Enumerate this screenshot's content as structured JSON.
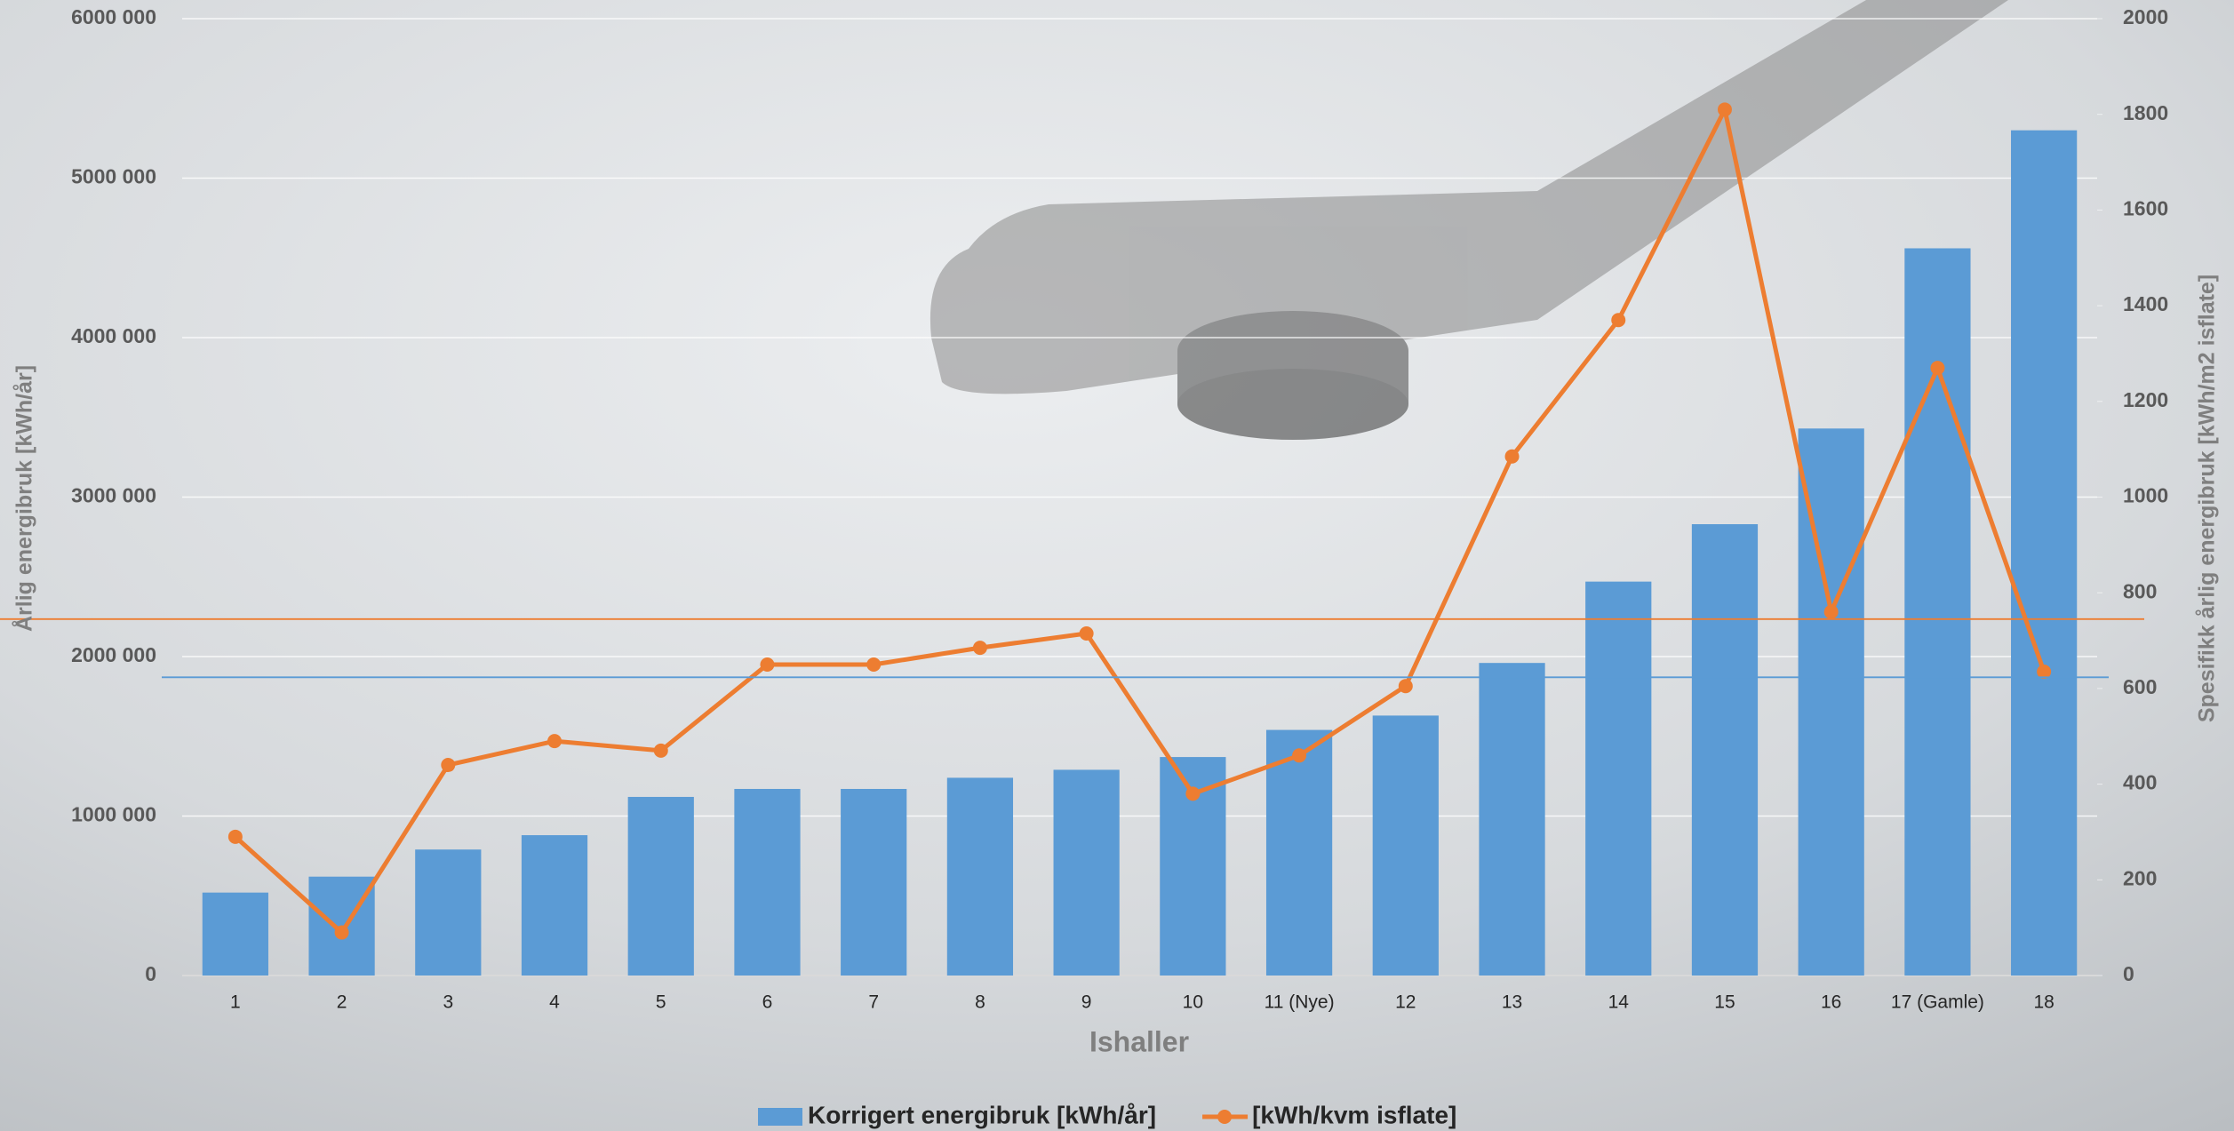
{
  "chart_data": {
    "type": "bar",
    "x_label": "Ishaller",
    "y_label": "Årlig energibruk [kWh/år]",
    "y2_label": "Spesifikk årlig energibruk [kWh/m2 isflate]",
    "categories": [
      "1",
      "2",
      "3",
      "4",
      "5",
      "6",
      "7",
      "8",
      "9",
      "10",
      "11 (Nye)",
      "12",
      "13",
      "14",
      "15",
      "16",
      "17 (Gamle)",
      "18"
    ],
    "series": [
      {
        "name": "Korrigert energibruk [kWh/år]",
        "type": "bar",
        "axis": "y",
        "color": "#5b9bd5",
        "values": [
          520000,
          620000,
          790000,
          880000,
          1120000,
          1170000,
          1170000,
          1240000,
          1290000,
          1370000,
          1540000,
          1630000,
          1960000,
          2470000,
          2830000,
          3430000,
          4560000,
          5300000
        ]
      },
      {
        "name": "[kWh/kvm isflate]",
        "type": "line",
        "axis": "y2",
        "color": "#ed7d31",
        "values": [
          290,
          90,
          440,
          490,
          470,
          650,
          650,
          685,
          715,
          380,
          460,
          605,
          1085,
          1370,
          1810,
          760,
          1270,
          635
        ]
      }
    ],
    "ylim": [
      0,
      6000000
    ],
    "yticks": [
      0,
      {
        "value": 1000000,
        "label": "1000 000"
      },
      {
        "value": 2000000,
        "label": "2000 000"
      },
      {
        "value": 3000000,
        "label": "3000 000"
      },
      {
        "value": 4000000,
        "label": "4000 000"
      },
      {
        "value": 5000000,
        "label": "5000 000"
      },
      {
        "value": 6000000,
        "label": "6000 000"
      }
    ],
    "y2lim": [
      0,
      2000
    ],
    "y2ticks": [
      0,
      200,
      400,
      600,
      800,
      1000,
      1200,
      1400,
      1600,
      1800,
      2000
    ],
    "hlines": [
      {
        "value": 1870000,
        "axis": "y",
        "color": "#5b9bd5"
      },
      {
        "value": 745,
        "axis": "y2",
        "color": "#ed7d31"
      }
    ],
    "grid": true,
    "legend": "bottom"
  }
}
